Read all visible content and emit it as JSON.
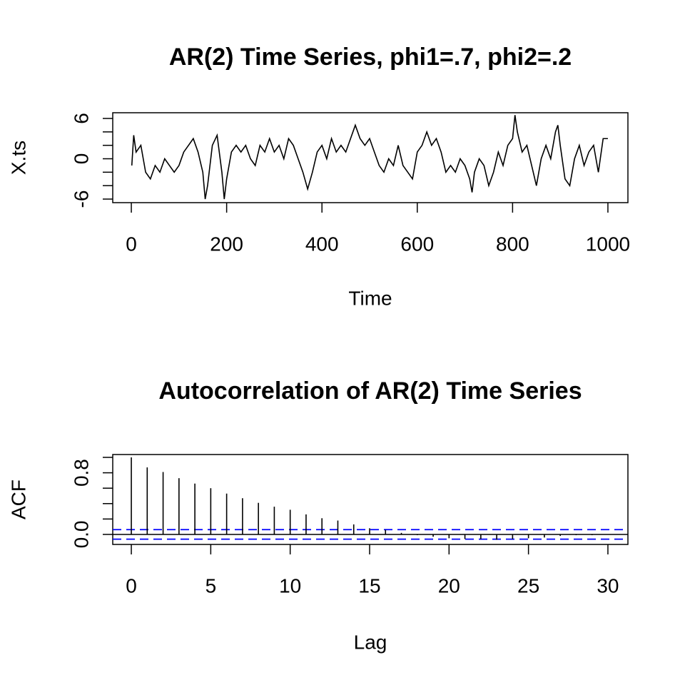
{
  "chart_data": [
    {
      "type": "line",
      "title": "AR(2) Time Series, phi1=.7, phi2=.2",
      "x_label": "Time",
      "y_label": "X.ts",
      "color": "#000000",
      "x": [
        1,
        5,
        10,
        20,
        30,
        40,
        50,
        60,
        70,
        80,
        90,
        100,
        110,
        120,
        130,
        140,
        150,
        155,
        160,
        170,
        180,
        190,
        195,
        200,
        210,
        220,
        230,
        240,
        250,
        260,
        270,
        280,
        290,
        300,
        310,
        320,
        330,
        340,
        350,
        360,
        370,
        380,
        390,
        400,
        410,
        420,
        430,
        440,
        450,
        460,
        470,
        480,
        490,
        500,
        510,
        520,
        530,
        540,
        550,
        560,
        570,
        580,
        590,
        600,
        610,
        620,
        630,
        640,
        650,
        660,
        670,
        680,
        690,
        700,
        710,
        715,
        720,
        730,
        740,
        750,
        760,
        770,
        780,
        790,
        800,
        805,
        810,
        820,
        830,
        840,
        850,
        860,
        870,
        880,
        890,
        895,
        900,
        910,
        920,
        930,
        940,
        950,
        960,
        970,
        980,
        990,
        1000
      ],
      "values": [
        -1,
        3.5,
        1,
        2,
        -2,
        -3,
        -1,
        -2,
        0,
        -1,
        -2,
        -1,
        1,
        2,
        3,
        1,
        -2,
        -6,
        -4,
        2,
        3.5,
        -2,
        -6,
        -3,
        1,
        2,
        1,
        2,
        0,
        -1,
        2,
        1,
        3,
        1,
        2,
        0,
        3,
        2,
        0,
        -2,
        -4.5,
        -2,
        1,
        2,
        0,
        3,
        1,
        2,
        1,
        3,
        5,
        3,
        2,
        3,
        1,
        -1,
        -2,
        0,
        -1,
        2,
        -1,
        -2,
        -3,
        1,
        2,
        4,
        2,
        3,
        1,
        -2,
        -1,
        -2,
        0,
        -1,
        -3,
        -5,
        -2,
        0,
        -1,
        -4,
        -2,
        1,
        -1,
        2,
        3,
        6.5,
        4,
        1,
        2,
        -1,
        -4,
        0,
        2,
        0,
        4,
        5,
        2,
        -3,
        -4,
        0,
        2,
        -1,
        1,
        2,
        -2,
        3,
        3
      ],
      "xlim": [
        -39,
        1042
      ],
      "ylim": [
        -6.53,
        6.85
      ],
      "xticks": [
        0,
        200,
        400,
        600,
        800,
        1000
      ],
      "yticks": [
        -6,
        0,
        6
      ],
      "yminor_ticks": [
        -4,
        -2,
        2,
        4
      ]
    },
    {
      "type": "stem",
      "title": "Autocorrelation of AR(2) Time Series",
      "x_label": "Lag",
      "y_label": "ACF",
      "color": "#000000",
      "x": [
        0,
        1,
        2,
        3,
        4,
        5,
        6,
        7,
        8,
        9,
        10,
        11,
        12,
        13,
        14,
        15,
        16,
        17,
        18,
        19,
        20,
        21,
        22,
        23,
        24,
        25,
        26,
        27,
        28,
        29,
        30
      ],
      "values": [
        1,
        0.87,
        0.81,
        0.73,
        0.66,
        0.6,
        0.53,
        0.47,
        0.41,
        0.36,
        0.32,
        0.26,
        0.21,
        0.18,
        0.13,
        0.08,
        0.06,
        0.02,
        -0.01,
        -0.03,
        -0.05,
        -0.06,
        -0.06,
        -0.07,
        -0.06,
        -0.05,
        -0.04,
        -0.02,
        -0.01,
        -0.01,
        0
      ],
      "ci_lines": [
        0.062,
        -0.062
      ],
      "ci_color": "#0000ff",
      "xlim": [
        -1.17,
        31.26
      ],
      "ylim": [
        -0.13,
        1.037
      ],
      "xticks": [
        0,
        5,
        10,
        15,
        20,
        25,
        30
      ],
      "yticks": [
        {
          "value": 0,
          "label": "0.0"
        },
        {
          "value": 0.8,
          "label": "0.8"
        }
      ],
      "yminor_ticks": [
        0.2,
        0.4,
        0.6,
        1.0
      ]
    }
  ]
}
